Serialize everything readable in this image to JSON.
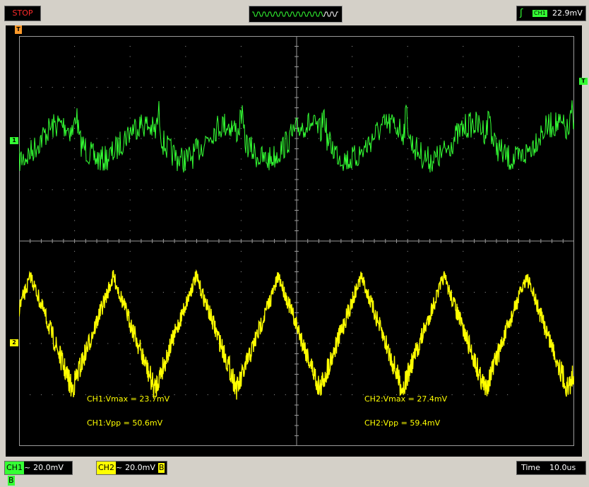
{
  "status": {
    "run_state": "STOP"
  },
  "trigger": {
    "source": "CH1",
    "level": "22.9mV",
    "edge_icon": "rising-edge-icon"
  },
  "channels": [
    {
      "name": "CH1",
      "marker": "1",
      "coupling_icon": "~",
      "scale": "20.0mV",
      "bw_flag": "B",
      "color": "#34ff34"
    },
    {
      "name": "CH2",
      "marker": "2",
      "coupling_icon": "~",
      "scale": "20.0mV",
      "bw_flag": "B",
      "color": "#ffff00"
    }
  ],
  "timebase": {
    "label": "Time",
    "value": "10.0us"
  },
  "markers": {
    "trigger_pos": "T",
    "trigger_level": "T"
  },
  "measurements": {
    "ch1_vmax": "CH1:Vmax = 23.7mV",
    "ch1_vpp": "CH1:Vpp = 50.6mV",
    "ch2_vmax": "CH2:Vmax = 27.4mV",
    "ch2_vpp": "CH2:Vpp = 59.4mV"
  },
  "colors": {
    "screen": "#000000",
    "grid": "#9a9a9a",
    "ch1": "#34ff34",
    "ch2": "#ffff00",
    "stop": "#ff2a2a"
  }
}
